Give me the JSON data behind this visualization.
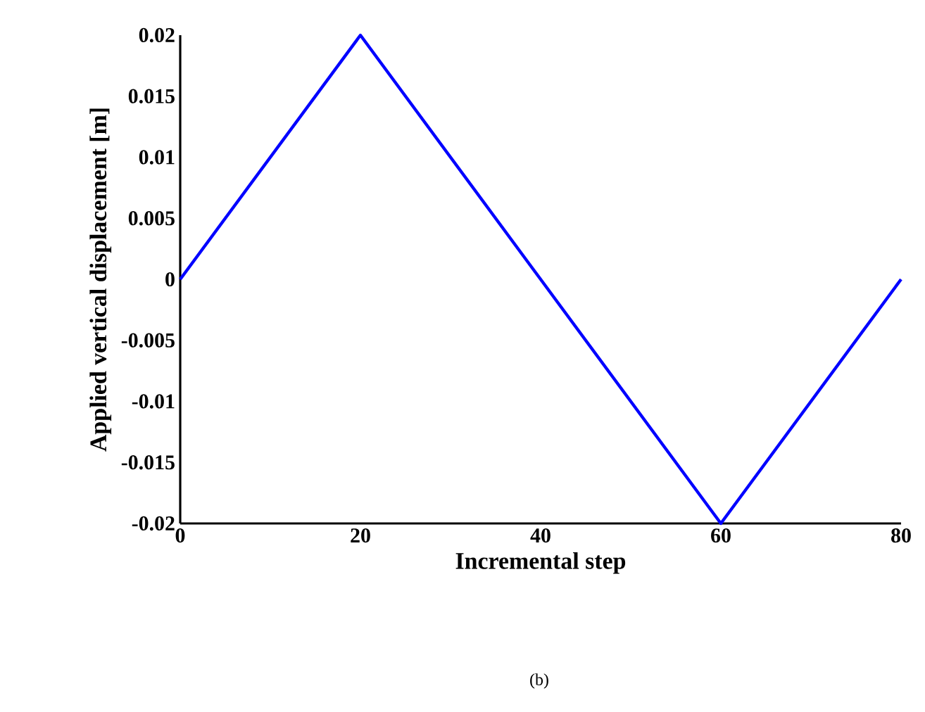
{
  "chart_data": {
    "type": "line",
    "xlabel": "Incremental step",
    "ylabel": "Applied vertical displacement [m]",
    "x": [
      0,
      20,
      60,
      80
    ],
    "series": [
      {
        "color": "#0000ff",
        "values": [
          0,
          0.02,
          -0.02,
          0
        ]
      }
    ],
    "xlim": [
      0,
      80
    ],
    "xticks": [
      0,
      20,
      40,
      60,
      80
    ],
    "ylim": [
      -0.02,
      0.02
    ],
    "yticks": [
      -0.02,
      -0.015,
      -0.01,
      -0.005,
      0,
      0.005,
      0.01,
      0.015,
      0.02
    ],
    "annotations": [
      "(b)"
    ]
  }
}
